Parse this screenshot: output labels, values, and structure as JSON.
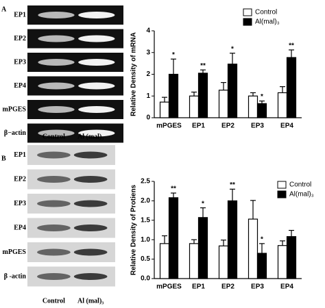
{
  "gels": [
    {
      "panel": "A",
      "rows": [
        "EP1",
        "EP2",
        "EP3",
        "EP4",
        "mPGES",
        "β−actin"
      ]
    },
    {
      "panel": "B",
      "lanes": [
        "Control",
        "Al (mal)₃"
      ],
      "rows": [
        "EP1",
        "EP2",
        "EP3",
        "EP4",
        "mPGES",
        "β -actin"
      ]
    }
  ],
  "chart_data": [
    {
      "type": "bar",
      "y_label": "Relative Density of mRNA",
      "categories": [
        "mPGES",
        "EP1",
        "EP2",
        "EP3",
        "EP4"
      ],
      "series": [
        {
          "name": "Control",
          "color": "#ffffff",
          "values": [
            0.72,
            1.0,
            1.27,
            1.0,
            1.15
          ],
          "errors": [
            0.22,
            0.18,
            0.35,
            0.15,
            0.28
          ]
        },
        {
          "name": "Al(mal)₃",
          "color": "#000000",
          "values": [
            2.0,
            2.05,
            2.47,
            0.65,
            2.77
          ],
          "errors": [
            0.7,
            0.15,
            0.5,
            0.12,
            0.35
          ]
        }
      ],
      "annotations": [
        "*",
        "**",
        "*",
        "*",
        "**"
      ],
      "ylim": [
        0,
        4
      ],
      "yticks": [
        0,
        1,
        2,
        3,
        4
      ],
      "legend": "top right"
    },
    {
      "type": "bar",
      "y_label": "Relative Density of Protiens",
      "categories": [
        "mPGES",
        "EP1",
        "EP2",
        "EP3",
        "EP4"
      ],
      "series": [
        {
          "name": "Control",
          "color": "#ffffff",
          "values": [
            0.9,
            0.9,
            0.84,
            1.53,
            0.85
          ],
          "errors": [
            0.2,
            0.1,
            0.15,
            0.48,
            0.12
          ]
        },
        {
          "name": "Al(mal)₃",
          "color": "#000000",
          "values": [
            2.08,
            1.57,
            2.0,
            0.65,
            1.08
          ],
          "errors": [
            0.12,
            0.25,
            0.3,
            0.25,
            0.16
          ]
        }
      ],
      "annotations": [
        "**",
        "*",
        "**",
        "*",
        null
      ],
      "ylim": [
        0,
        2.5
      ],
      "yticks": [
        {
          "value": 0,
          "label": "0.0"
        },
        0.5,
        {
          "value": 1,
          "label": "1.0"
        },
        1.5,
        {
          "value": 2,
          "label": "2.0"
        },
        2.5
      ],
      "legend": "top right"
    }
  ]
}
